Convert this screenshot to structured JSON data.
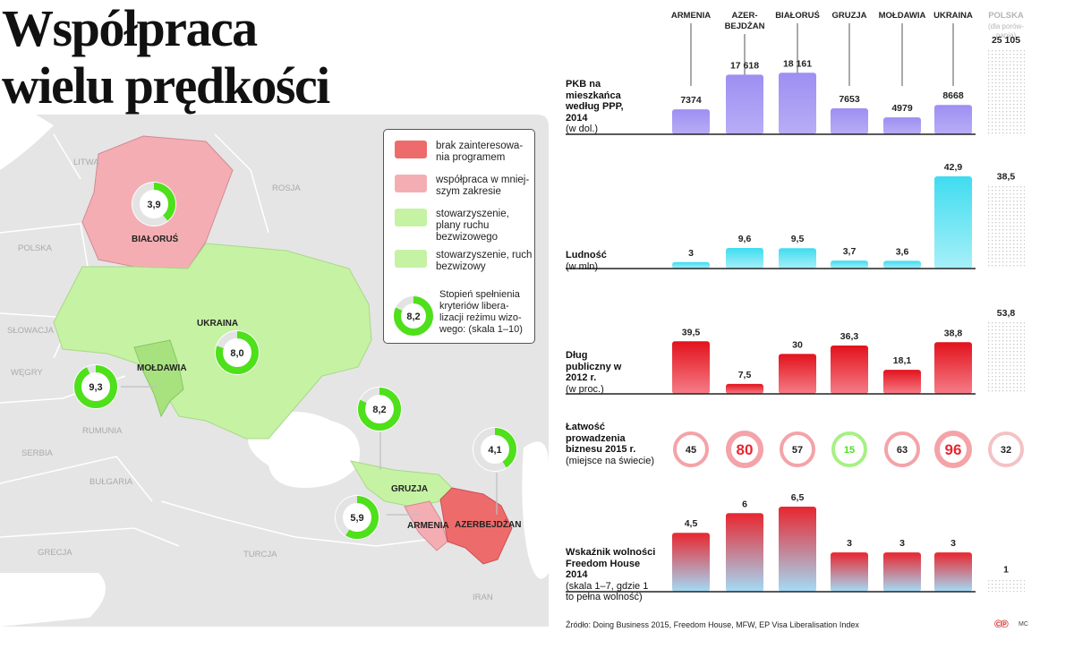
{
  "title_lines": [
    "Współpraca",
    "wielu prędkości"
  ],
  "map": {
    "labels": {
      "litwa": "LITWA",
      "rosja": "ROSJA",
      "polska": "POLSKA",
      "slowacja": "SŁOWACJA",
      "wegry": "WĘGRY",
      "rumunia": "RUMUNIA",
      "serbia": "SERBIA",
      "bulgaria": "BUŁGARIA",
      "grecja": "GRECJA",
      "turcja": "TURCJA",
      "iran": "IRAN",
      "bialorus": "BIAŁORUŚ",
      "ukraina": "UKRAINA",
      "moldawia": "MOŁDAWIA",
      "gruzja": "GRUZJA",
      "armenia": "ARMENIA",
      "azerbejdzan": "AZERBEJDŻAN"
    },
    "rings": [
      {
        "id": "bialorus",
        "label": "3,9",
        "value": 3.9
      },
      {
        "id": "ukraina",
        "label": "8,0",
        "value": 8.0
      },
      {
        "id": "moldawia",
        "label": "9,3",
        "value": 9.3
      },
      {
        "id": "gruzja",
        "label": "8,2",
        "value": 8.2
      },
      {
        "id": "azerbejdzan",
        "label": "4,1",
        "value": 4.1
      },
      {
        "id": "armenia",
        "label": "5,9",
        "value": 5.9
      }
    ],
    "colors": {
      "no_interest": "#ee6b6b",
      "limited": "#f4aeb3",
      "association_plans": "#c6f2a4",
      "association_free": "#c6f2a4",
      "ring": "#4ee01a",
      "ring_bg": "#e3e3e3",
      "land": "#e5e5e5",
      "sea": "#ffffff"
    }
  },
  "legend": {
    "items": [
      {
        "text": "brak zainteresowa-nia programem",
        "color": "#ee6b6b"
      },
      {
        "text": "współpraca w mniej-szym zakresie",
        "color": "#f4aeb3"
      },
      {
        "text": "stowarzyszenie, plany ruchu bezwizowego",
        "color": "#c6f2a4"
      },
      {
        "text": "stowarzyszenie, ruch bezwizowy",
        "color": "#c6f2a4"
      }
    ],
    "ring_label": "8,2",
    "ring_value": 8.2,
    "ring_text": "Stopień spełnienia kryteriów libera-lizacji reżimu wizo-wego: (skala 1–10)"
  },
  "chart_data": {
    "type": "bar",
    "categories": [
      "ARMENIA",
      "AZER-BEJDŻAN",
      "BIAŁORUŚ",
      "GRUZJA",
      "MOŁDAWIA",
      "UKRAINA"
    ],
    "comparison": {
      "name": "POLSKA",
      "note": "(dla porów-nania)"
    },
    "rows": [
      {
        "title": "PKB na mieszkańca według PPP, 2014",
        "unit": "(w dol.)",
        "type": "bar",
        "values": [
          7374,
          17618,
          18161,
          7653,
          4979,
          8668
        ],
        "comparison_value": 25105,
        "labels": [
          "7374",
          "17 618",
          "18 161",
          "7653",
          "4979",
          "8668"
        ],
        "comparison_label": "25 105",
        "color": "#a79af3"
      },
      {
        "title": "Ludność",
        "unit": "(w mln)",
        "type": "bar",
        "values": [
          3,
          9.6,
          9.5,
          3.7,
          3.6,
          42.9
        ],
        "comparison_value": 38.5,
        "labels": [
          "3",
          "9,6",
          "9,5",
          "3,7",
          "3,6",
          "42,9"
        ],
        "comparison_label": "38,5",
        "color": "#6ee6f2"
      },
      {
        "title": "Dług publiczny w 2012 r.",
        "unit": "(w proc.)",
        "type": "bar",
        "values": [
          39.5,
          7.5,
          30,
          36.3,
          18.1,
          38.8
        ],
        "comparison_value": 53.8,
        "labels": [
          "39,5",
          "7,5",
          "30",
          "36,3",
          "18,1",
          "38,8"
        ],
        "comparison_label": "53,8",
        "color": "#e8262f"
      },
      {
        "title": "Łatwość prowadzenia biznesu 2015 r.",
        "unit": "(miejsce na świecie)",
        "type": "rank",
        "values": [
          45,
          80,
          57,
          15,
          63,
          96
        ],
        "comparison_value": 32,
        "labels": [
          "45",
          "80",
          "57",
          "15",
          "63",
          "96"
        ],
        "comparison_label": "32"
      },
      {
        "title": "Wskaźnik wolności Freedom House 2014",
        "unit": "(skala 1–7, gdzie 1 to pełna wolność)",
        "type": "bar",
        "values": [
          4.5,
          6,
          6.5,
          3,
          3,
          3
        ],
        "comparison_value": 1,
        "labels": [
          "4,5",
          "6",
          "6,5",
          "3",
          "3",
          "3"
        ],
        "comparison_label": "1",
        "color": "#e8262f"
      }
    ]
  },
  "source": "Źródło: Doing Business 2015, Freedom House, MFW, EP Visa Liberalisation Index",
  "logo": "©℗",
  "credit": "MC"
}
